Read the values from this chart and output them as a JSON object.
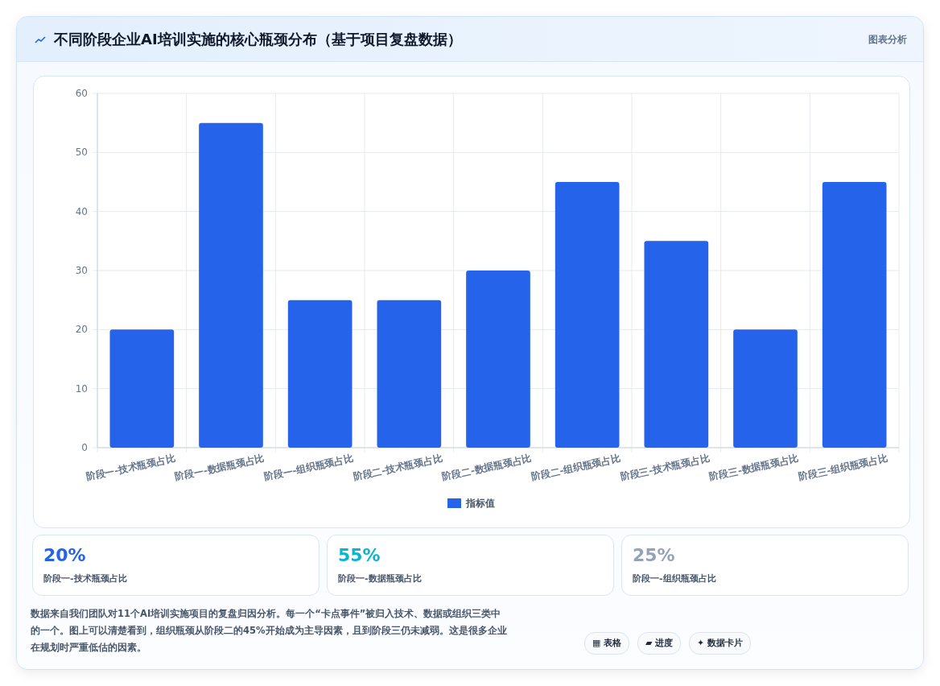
{
  "chart_data": [
    {
      "type": "bar",
      "title": "不同阶段企业AI培训实施的核心瓶颈分布（基于项目复盘数据）",
      "annotations": [
        "图表分析"
      ],
      "categories": [
        "阶段一-技术瓶颈占比",
        "阶段一-数据瓶颈占比",
        "阶段一-组织瓶颈占比",
        "阶段二-技术瓶颈占比",
        "阶段二-数据瓶颈占比",
        "阶段二-组织瓶颈占比",
        "阶段三-技术瓶颈占比",
        "阶段三-数据瓶颈占比",
        "阶段三-组织瓶颈占比"
      ],
      "series": [
        {
          "name": "指标值",
          "color": "#2563eb",
          "values": [
            20,
            55,
            25,
            25,
            30,
            45,
            35,
            20,
            45
          ]
        }
      ],
      "ylim": [
        0,
        60
      ],
      "yticks": [
        0,
        10,
        20,
        30,
        40,
        50,
        60
      ],
      "grid": true,
      "legend": "bottom"
    },
    {
      "type": "other",
      "categories": [
        "阶段一-技术瓶颈占比",
        "阶段一-数据瓶颈占比",
        "阶段一-组织瓶颈占比"
      ],
      "value_labels": [
        "20%",
        "55%",
        "25%"
      ],
      "annotations": [
        "数据来自我们团队对11个AI培训实施项目的复盘归因分析。每一个“卡点事件”被归入技术、数据或组织三类中的一个。图上可以清楚看到，组织瓶颈从阶段二的45%开始成为主导因素，且到阶段三仍未减弱。这是很多企业在规划时严重低估的因素。",
        "▦ 表格",
        "▰ 进度",
        "✦ 数据卡片"
      ]
    }
  ]
}
